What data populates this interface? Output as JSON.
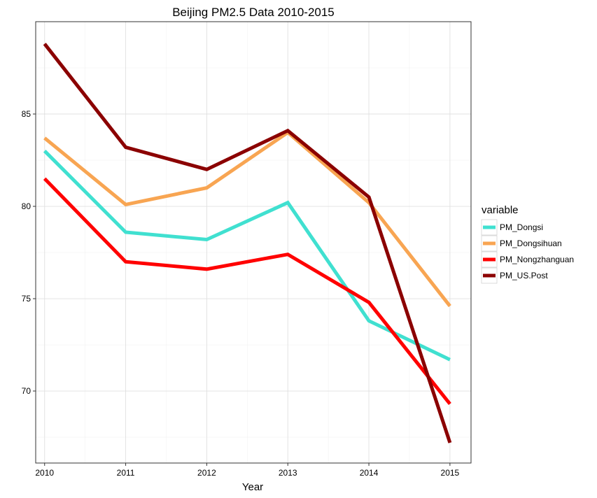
{
  "chart_data": {
    "type": "line",
    "title": "Beijing PM2.5 Data 2010-2015",
    "xlabel": "Year",
    "ylabel": "",
    "x": [
      2010,
      2011,
      2012,
      2013,
      2014,
      2015
    ],
    "x_tick_labels": [
      "2010",
      "2011",
      "2012",
      "2013",
      "2014",
      "2015"
    ],
    "y_ticks": [
      70,
      75,
      80,
      85
    ],
    "y_tick_labels": [
      "70",
      "75",
      "80",
      "85"
    ],
    "xlim": [
      2009.89,
      2015.26
    ],
    "ylim": [
      66.1,
      90.0
    ],
    "grid": true,
    "legend": {
      "title": "variable",
      "placement": "right"
    },
    "series": [
      {
        "name": "PM_Dongsi",
        "color": "#40E0D0",
        "values": [
          83.0,
          78.6,
          78.2,
          80.2,
          73.8,
          71.7
        ]
      },
      {
        "name": "PM_Dongsihuan",
        "color": "#F8A552",
        "values": [
          83.7,
          80.1,
          81.0,
          84.0,
          80.2,
          74.6
        ]
      },
      {
        "name": "PM_Nongzhanguan",
        "color": "#FF0000",
        "values": [
          81.5,
          77.0,
          76.6,
          77.4,
          74.8,
          69.3
        ]
      },
      {
        "name": "PM_US.Post",
        "color": "#8B0000",
        "values": [
          88.8,
          83.2,
          82.0,
          84.1,
          80.5,
          67.2
        ]
      }
    ]
  }
}
